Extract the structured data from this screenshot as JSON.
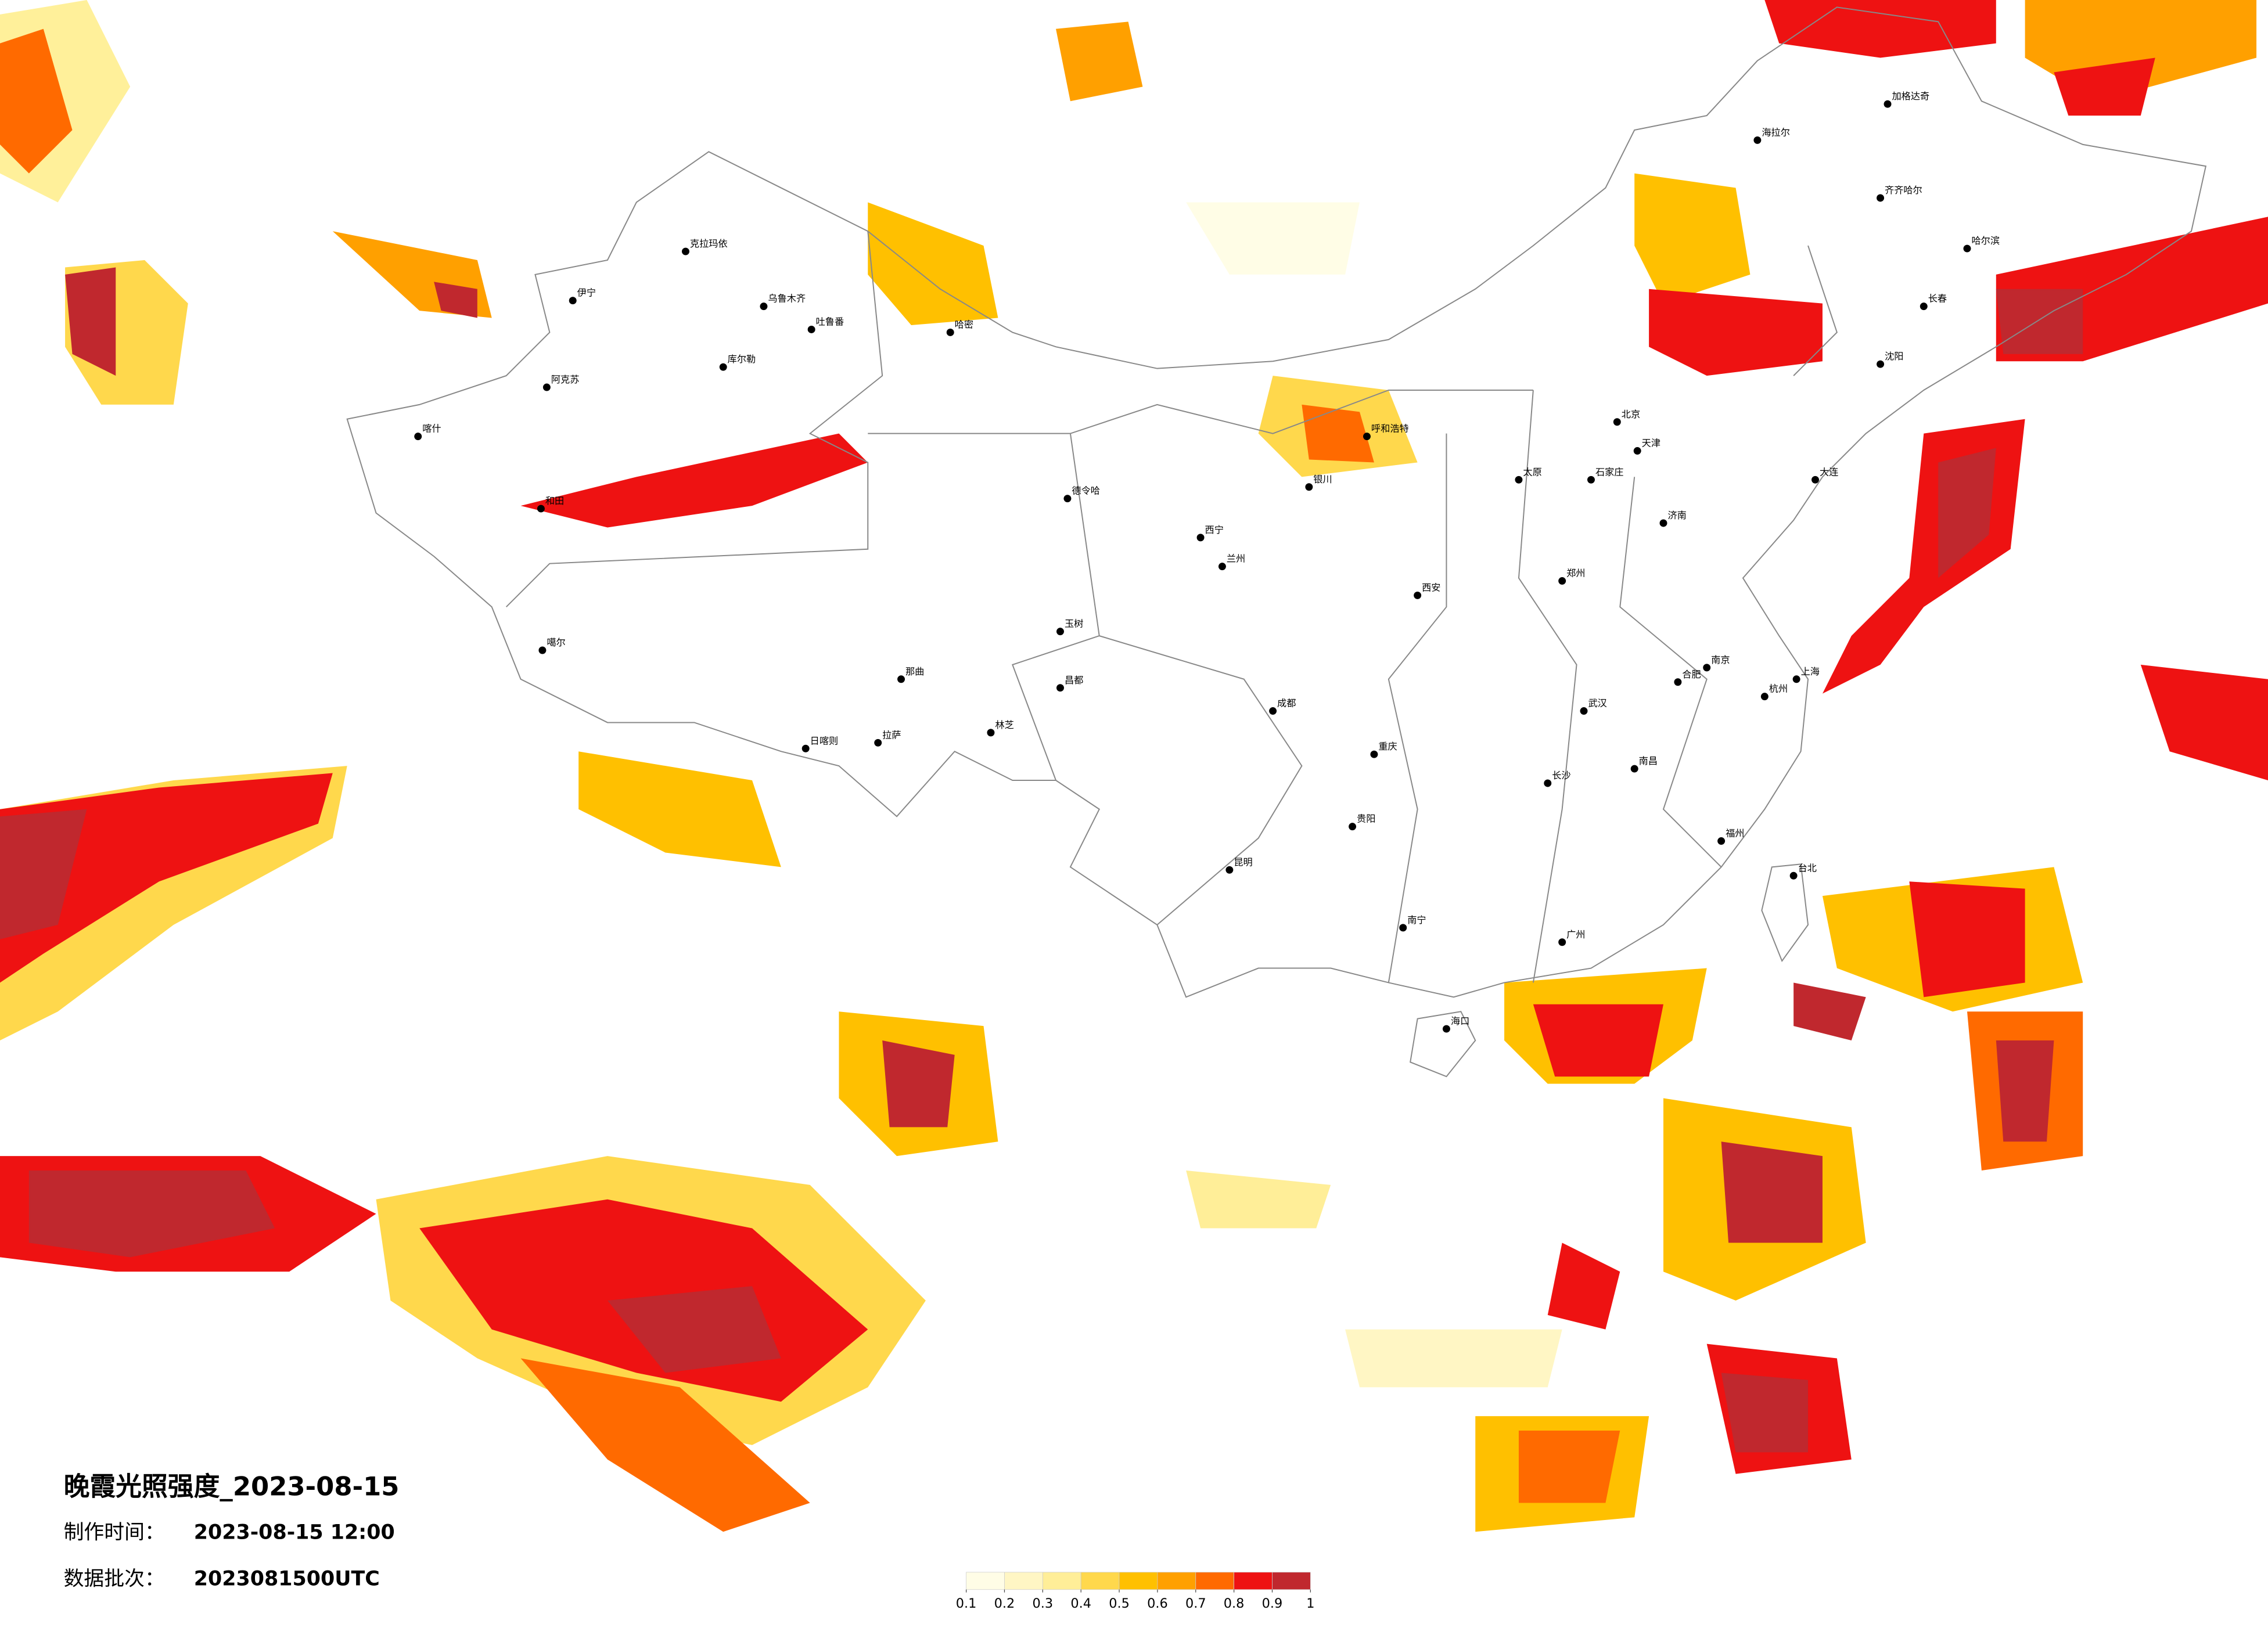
{
  "title": "晚霞光照强度_2023-08-15",
  "info": [
    {
      "label": "制作时间：",
      "value": "2023-08-15 12:00"
    },
    {
      "label": "数据批次：",
      "value": "2023081500UTC"
    }
  ],
  "legend": {
    "ticks": [
      0.1,
      0.2,
      0.3,
      0.4,
      0.5,
      0.6,
      0.7,
      0.8,
      0.9,
      1
    ],
    "colors": [
      "#fffde6",
      "#fff6c4",
      "#ffee98",
      "#ffd84c",
      "#ffc000",
      "#ffa000",
      "#ff6a00",
      "#ee1212",
      "#c0282e"
    ]
  },
  "cities": [
    "克拉玛依",
    "伊宁",
    "乌鲁木齐",
    "吐鲁番",
    "库尔勒",
    "阿克苏",
    "喀什",
    "和田",
    "哈密",
    "噶尔",
    "日喀则",
    "拉萨",
    "林芝",
    "那曲",
    "昌都",
    "玉树",
    "德令哈",
    "西宁",
    "兰州",
    "银川",
    "呼和浩特",
    "北京",
    "天津",
    "石家庄",
    "太原",
    "济南",
    "郑州",
    "西安",
    "成都",
    "重庆",
    "贵阳",
    "昆明",
    "南宁",
    "广州",
    "海口",
    "福州",
    "台北",
    "杭州",
    "上海",
    "南京",
    "武汉",
    "长沙",
    "南昌",
    "合肥",
    "哈尔滨",
    "长春",
    "沈阳",
    "大连",
    "齐齐哈尔",
    "加格达奇",
    "海拉尔"
  ]
}
